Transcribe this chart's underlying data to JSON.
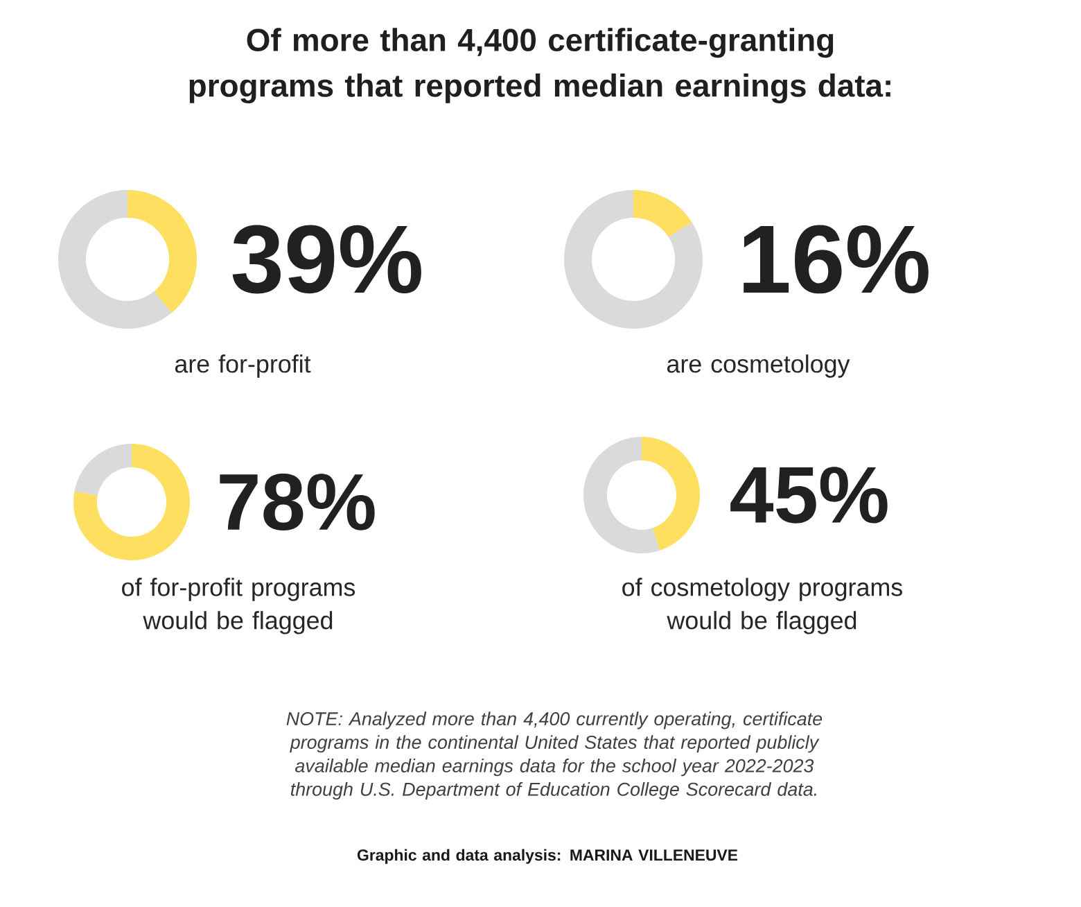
{
  "chart_data": [
    {
      "type": "donut",
      "title": "Of more than 4,400 certificate-granting programs that reported median earnings data:",
      "categories": [
        null,
        null
      ],
      "values": [
        39,
        61
      ],
      "colors": [
        "#fedf5f",
        "#dadada"
      ],
      "value_labels": [
        "39%",
        null
      ],
      "subtitle": "are for-profit"
    },
    {
      "type": "donut",
      "categories": [
        null,
        null
      ],
      "values": [
        16,
        84
      ],
      "colors": [
        "#fedf5f",
        "#dadada"
      ],
      "value_labels": [
        "16%",
        null
      ],
      "subtitle": "are cosmetology"
    },
    {
      "type": "donut",
      "categories": [
        null,
        null
      ],
      "values": [
        78,
        22
      ],
      "colors": [
        "#fedf5f",
        "#dadada"
      ],
      "value_labels": [
        "78%",
        null
      ],
      "subtitle": "of for-profit programs would be flagged"
    },
    {
      "type": "donut",
      "categories": [
        null,
        null
      ],
      "values": [
        45,
        55
      ],
      "colors": [
        "#fedf5f",
        "#dadada"
      ],
      "value_labels": [
        "45%",
        null
      ],
      "subtitle": "of cosmetology programs would be flagged",
      "annotations": [
        "NOTE: Analyzed more than 4,400 currently operating, certificate programs in the continental United States that reported publicly available median earnings data for the school year 2022-2023 through U.S. Department of Education College Scorecard data.",
        "Graphic and data analysis: MARINA VILLENEUVE"
      ]
    }
  ]
}
